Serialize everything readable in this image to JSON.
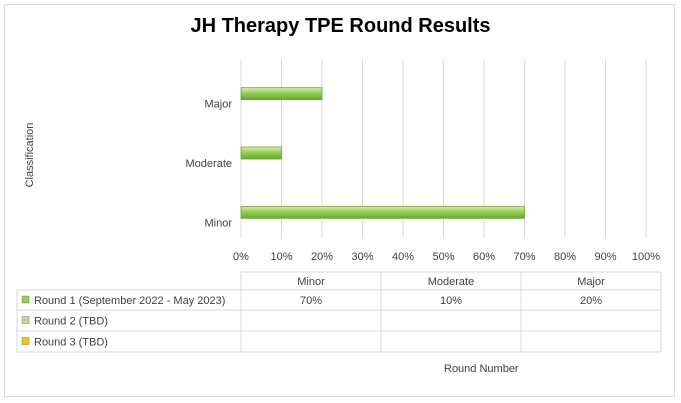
{
  "chart_data": {
    "type": "bar",
    "orientation": "horizontal",
    "title": "JH Therapy TPE Round Results",
    "ylabel": "Classification",
    "xlabel": "Round Number",
    "categories": [
      "Minor",
      "Moderate",
      "Major"
    ],
    "series": [
      {
        "name": "Round 1 (September 2022 - May 2023)",
        "values": [
          70,
          10,
          20
        ],
        "color": "#92d050"
      },
      {
        "name": "Round 2 (TBD)",
        "values": [
          null,
          null,
          null
        ],
        "color": "#c3d69b"
      },
      {
        "name": "Round 3 (TBD)",
        "values": [
          null,
          null,
          null
        ],
        "color": "#ffc000"
      }
    ],
    "value_labels": [
      "70%",
      "10%",
      "20%"
    ],
    "xlim": [
      0,
      100
    ],
    "x_ticks": [
      "0%",
      "10%",
      "20%",
      "30%",
      "40%",
      "50%",
      "60%",
      "70%",
      "80%",
      "90%",
      "100%"
    ],
    "grid": true,
    "legend": "data-table"
  }
}
